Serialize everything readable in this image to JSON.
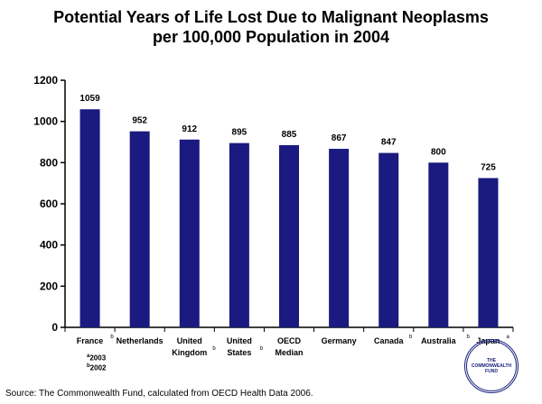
{
  "title_line1": "Potential Years of Life Lost Due to Malignant Neoplasms",
  "title_line2": "per 100,000 Population in 2004",
  "source": "Source: The Commonwealth Fund, calculated from OECD Health Data 2006.",
  "footnotes": {
    "a": "2003",
    "b": "2002"
  },
  "logo_lines": [
    "THE",
    "COMMONWEALTH",
    "FUND"
  ],
  "colors": {
    "bar": "#1a1a80",
    "axis": "#000000"
  },
  "chart_data": {
    "type": "bar",
    "categories": [
      {
        "lines": [
          "France"
        ],
        "mark": "b"
      },
      {
        "lines": [
          "Netherlands"
        ],
        "mark": ""
      },
      {
        "lines": [
          "United",
          "Kingdom"
        ],
        "mark": "b"
      },
      {
        "lines": [
          "United",
          "States"
        ],
        "mark": "b"
      },
      {
        "lines": [
          "OECD",
          "Median"
        ],
        "mark": ""
      },
      {
        "lines": [
          "Germany"
        ],
        "mark": ""
      },
      {
        "lines": [
          "Canada"
        ],
        "mark": "b"
      },
      {
        "lines": [
          "Australia"
        ],
        "mark": "b"
      },
      {
        "lines": [
          "Japan"
        ],
        "mark": "a"
      }
    ],
    "values": [
      1059,
      952,
      912,
      895,
      885,
      867,
      847,
      800,
      725
    ],
    "ylim": [
      0,
      1200
    ],
    "yticks": [
      0,
      200,
      400,
      600,
      800,
      1000,
      1200
    ],
    "grid": false
  }
}
